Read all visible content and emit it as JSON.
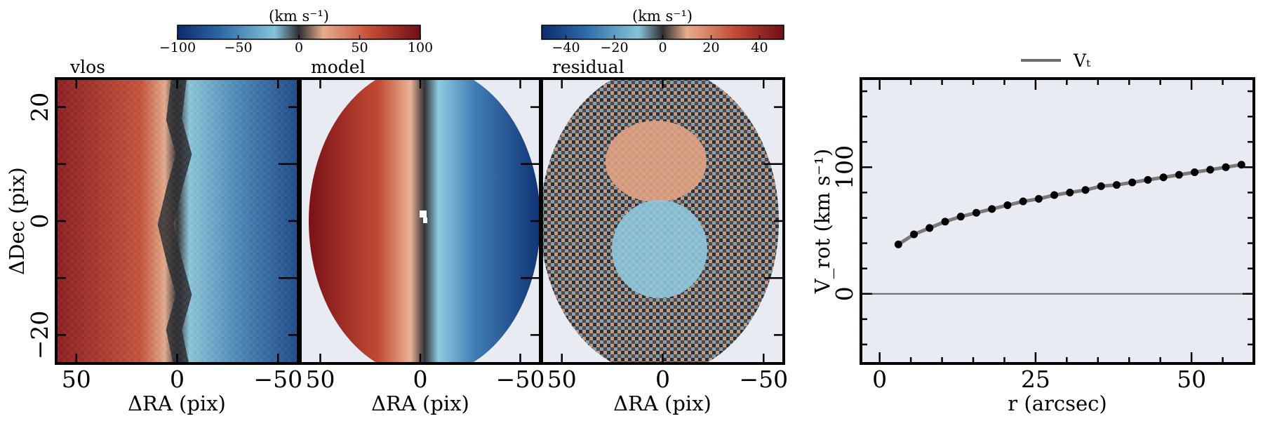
{
  "colors": {
    "panel_bg": "#e9ebf2",
    "axis": "#000000",
    "curve_line": "#6e6e6e",
    "point": "#000000",
    "zero_line": "#666666",
    "cmap": [
      "#0b2a6a",
      "#2e6aa7",
      "#86c4da",
      "#2e2e32",
      "#e7ad8c",
      "#c24a33",
      "#6e0f18"
    ]
  },
  "chart_data": [
    {
      "type": "heatmap",
      "title": "vlos",
      "xlabel": "ΔRA (pix)",
      "ylabel": "ΔDec (pix)",
      "xlim": [
        60,
        -60
      ],
      "ylim": [
        -25,
        25
      ],
      "xticks": [
        50,
        0,
        -50
      ],
      "yticks": [
        20,
        0,
        -20
      ],
      "xtick_labels": [
        "50",
        "0",
        "−50"
      ],
      "ytick_labels": [
        "20",
        "0",
        "−20"
      ],
      "colorbar": {
        "label": "(km s⁻¹)",
        "range": [
          -100,
          100
        ],
        "ticks": [
          -100,
          -50,
          0,
          50,
          100
        ],
        "tick_labels": [
          "−100",
          "−50",
          "0",
          "50",
          "100"
        ]
      },
      "field": "observed velocity: red/positive at ΔRA > 0, blue/negative at ΔRA < 0, wavy zero contour"
    },
    {
      "type": "heatmap",
      "title": "model",
      "xlabel": "ΔRA (pix)",
      "xlim": [
        60,
        -60
      ],
      "ylim": [
        -25,
        25
      ],
      "xticks": [
        50,
        0,
        -50
      ],
      "xtick_labels": [
        "50",
        "0",
        "−50"
      ],
      "colorbar": {
        "label": "(km s⁻¹)",
        "range": [
          -100,
          100
        ]
      },
      "field": "elliptical disc model velocity, red at ΔRA > 0, blue at ΔRA < 0"
    },
    {
      "type": "heatmap",
      "title": "residual",
      "xlabel": "ΔRA (pix)",
      "xlim": [
        60,
        -60
      ],
      "ylim": [
        -25,
        25
      ],
      "xticks": [
        50,
        0,
        -50
      ],
      "xtick_labels": [
        "50",
        "0",
        "−50"
      ],
      "colorbar": {
        "label": "(km s⁻¹)",
        "range": [
          -50,
          50
        ],
        "ticks": [
          -40,
          -20,
          0,
          20,
          40
        ],
        "tick_labels": [
          "−40",
          "−20",
          "0",
          "20",
          "40"
        ]
      },
      "field": "noisy residual map with positive blob above centre and negative blob below centre"
    },
    {
      "type": "line",
      "xlabel": "r (arcsec)",
      "ylabel": "V_rot (km s⁻¹)",
      "xlim": [
        -3,
        60
      ],
      "ylim": [
        -55,
        170
      ],
      "xticks": [
        0,
        25,
        50
      ],
      "yticks": [
        0,
        100
      ],
      "xtick_labels": [
        "0",
        "25",
        "50"
      ],
      "ytick_labels": [
        "0",
        "100"
      ],
      "legend": {
        "label": "Vₜ",
        "placement": "top-center, outside"
      },
      "zero_line": 0,
      "series": [
        {
          "name": "Vₜ",
          "x": [
            3,
            5.5,
            8,
            10.5,
            13,
            15.5,
            18,
            20.5,
            23,
            25.5,
            28,
            30.5,
            33,
            35.5,
            38,
            40.5,
            43,
            45.5,
            48,
            50.5,
            53,
            55.5,
            58
          ],
          "y": [
            39,
            47,
            52,
            57,
            61,
            64,
            67,
            70,
            73,
            75,
            78,
            80,
            82,
            85,
            86,
            88,
            90,
            92,
            94,
            96,
            98,
            100,
            102
          ]
        }
      ]
    }
  ]
}
